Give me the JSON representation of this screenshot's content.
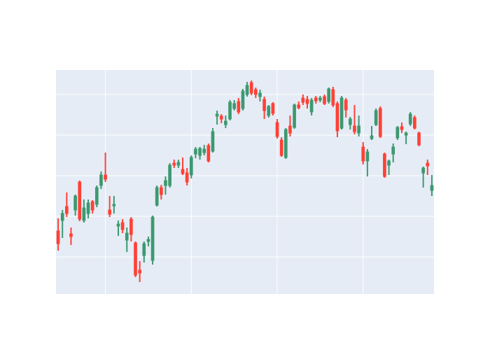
{
  "chart_data": {
    "type": "candlestick",
    "x": [
      0,
      1,
      2,
      3,
      4,
      5,
      6,
      7,
      8,
      9,
      10,
      11,
      12,
      13,
      14,
      15,
      16,
      17,
      18,
      19,
      20,
      21,
      22,
      23,
      24,
      25,
      26,
      27,
      28,
      29,
      30,
      31,
      32,
      33,
      34,
      35,
      36,
      37,
      38,
      39,
      40,
      41,
      42,
      43,
      44,
      45,
      46,
      47,
      48,
      49,
      50,
      51,
      52,
      53,
      54,
      55,
      56,
      57,
      58,
      59,
      60,
      61,
      62,
      63,
      64,
      65,
      66,
      67,
      68,
      69,
      70,
      71,
      72,
      73,
      74,
      75,
      76,
      77,
      78,
      79,
      80,
      81,
      82,
      83,
      84,
      85,
      86,
      87
    ],
    "open": [
      90,
      105,
      125,
      86,
      120,
      160,
      105,
      115,
      132,
      128,
      155,
      170,
      120,
      126,
      97,
      102,
      77,
      107,
      73,
      34,
      55,
      75,
      48,
      127,
      152,
      155,
      155,
      187,
      184,
      178,
      173,
      170,
      200,
      198,
      202,
      212,
      204,
      254,
      254,
      242,
      250,
      265,
      275,
      265,
      285,
      302,
      292,
      282,
      278,
      255,
      272,
      245,
      220,
      195,
      240,
      238,
      270,
      280,
      278,
      260,
      280,
      277,
      282,
      275,
      292,
      272,
      237,
      277,
      242,
      240,
      230,
      210,
      190,
      222,
      242,
      265,
      200,
      184,
      200,
      223,
      239,
      227,
      243,
      252,
      230,
      173,
      187,
      148
    ],
    "high": [
      108,
      120,
      145,
      95,
      142,
      162,
      135,
      135,
      134,
      155,
      175,
      202,
      140,
      140,
      105,
      107,
      95,
      110,
      75,
      47,
      75,
      82,
      112,
      155,
      156,
      168,
      187,
      192,
      192,
      195,
      180,
      198,
      210,
      210,
      213,
      215,
      237,
      262,
      257,
      255,
      277,
      277,
      280,
      293,
      303,
      305,
      295,
      292,
      282,
      270,
      274,
      250,
      224,
      237,
      255,
      272,
      275,
      285,
      283,
      280,
      283,
      283,
      285,
      295,
      296,
      275,
      283,
      280,
      253,
      270,
      255,
      217,
      207,
      240,
      265,
      268,
      202,
      192,
      215,
      240,
      245,
      232,
      260,
      255,
      232,
      182,
      192,
      170
    ],
    "low": [
      62,
      80,
      110,
      70,
      112,
      104,
      102,
      108,
      115,
      124,
      150,
      160,
      110,
      115,
      83,
      87,
      60,
      75,
      24,
      17,
      45,
      68,
      42,
      125,
      135,
      142,
      152,
      180,
      180,
      170,
      155,
      165,
      194,
      192,
      198,
      188,
      202,
      242,
      244,
      237,
      248,
      262,
      257,
      262,
      282,
      284,
      280,
      275,
      250,
      252,
      255,
      222,
      196,
      193,
      225,
      236,
      264,
      270,
      265,
      255,
      272,
      274,
      270,
      272,
      267,
      224,
      235,
      252,
      235,
      228,
      225,
      185,
      168,
      220,
      240,
      223,
      166,
      170,
      188,
      220,
      230,
      214,
      240,
      235,
      211,
      152,
      170,
      140
    ],
    "close": [
      72,
      115,
      115,
      82,
      140,
      107,
      123,
      130,
      120,
      152,
      170,
      164,
      114,
      128,
      100,
      92,
      87,
      85,
      27,
      30,
      72,
      78,
      110,
      152,
      142,
      162,
      184,
      184,
      188,
      172,
      160,
      195,
      207,
      208,
      207,
      190,
      232,
      257,
      250,
      247,
      274,
      272,
      260,
      290,
      298,
      287,
      285,
      287,
      262,
      268,
      258,
      225,
      198,
      235,
      230,
      270,
      266,
      274,
      272,
      277,
      276,
      280,
      272,
      293,
      270,
      233,
      280,
      263,
      250,
      232,
      240,
      190,
      203,
      226,
      262,
      225,
      168,
      190,
      210,
      238,
      235,
      230,
      257,
      237,
      213,
      180,
      183,
      155
    ],
    "increasing_color": "#3d9970",
    "decreasing_color": "#ff4136",
    "xlim": [
      -0.5,
      87.5
    ],
    "ylim": [
      0,
      320
    ],
    "xticks": [
      11,
      31,
      51,
      71
    ],
    "yticks": [
      53,
      111,
      169,
      227,
      285
    ],
    "grid": true
  }
}
